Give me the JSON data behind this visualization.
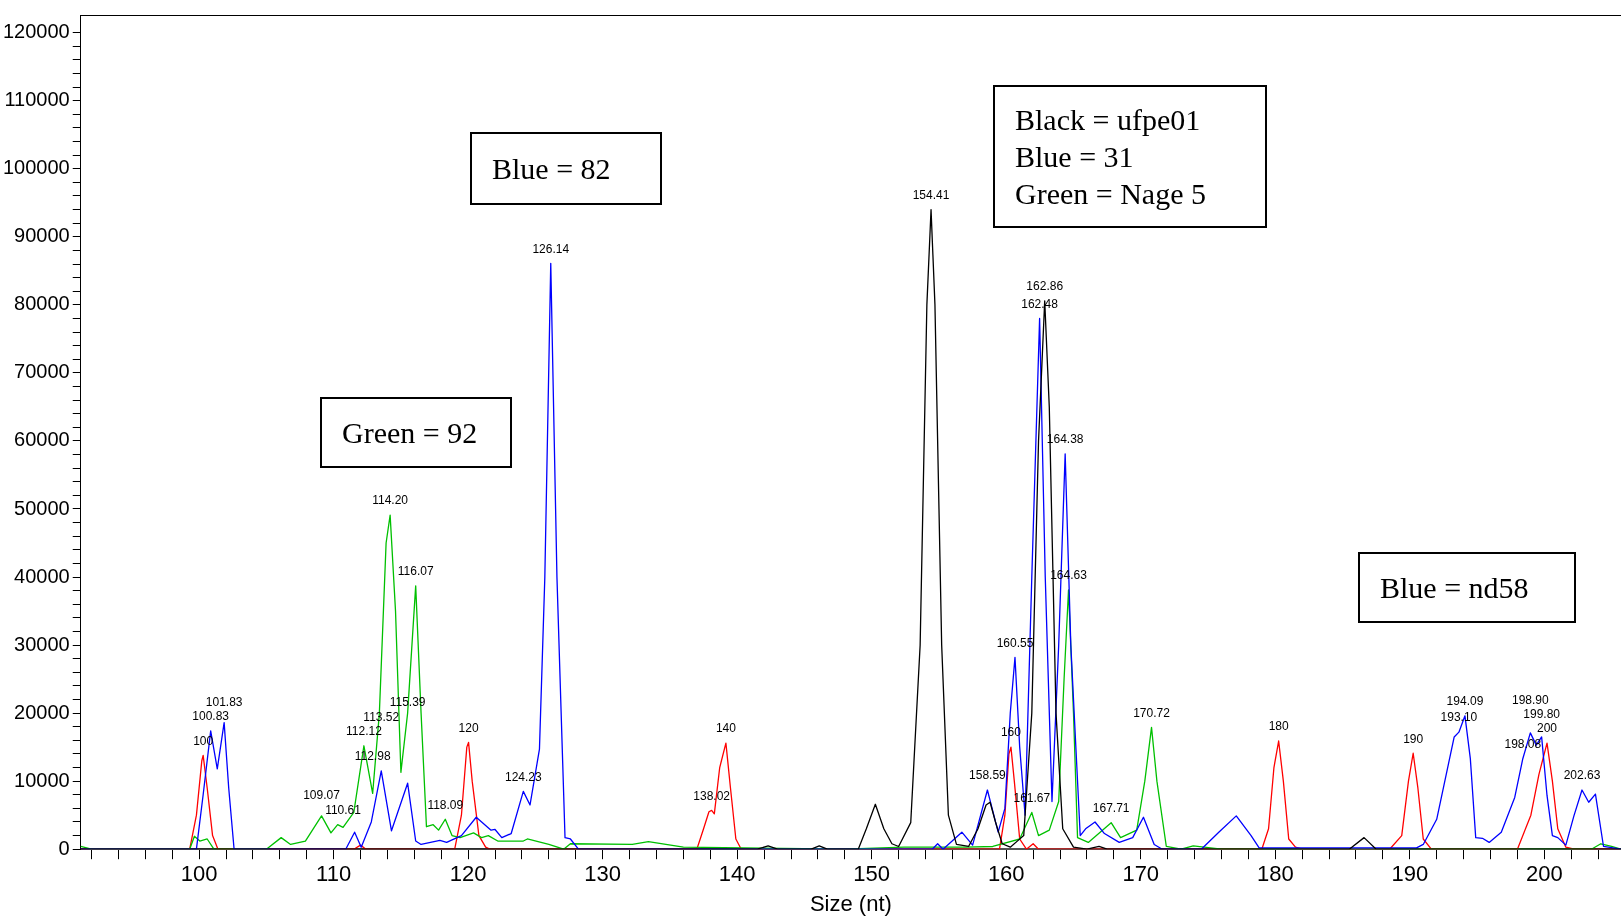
{
  "chart_data": {
    "type": "line",
    "xlabel": "Size (nt)",
    "xlim": [
      91.2,
      205.7
    ],
    "ylim": [
      0,
      122600
    ],
    "legend": false,
    "grid": false,
    "marker": "none",
    "line_style": "solid",
    "xticks": [
      {
        "value": 92,
        "label": null
      },
      {
        "value": 94,
        "label": null
      },
      {
        "value": 96,
        "label": null
      },
      {
        "value": 98,
        "label": null
      },
      100,
      {
        "value": 102,
        "label": null
      },
      {
        "value": 104,
        "label": null
      },
      {
        "value": 106,
        "label": null
      },
      {
        "value": 108,
        "label": null
      },
      110,
      {
        "value": 112,
        "label": null
      },
      {
        "value": 114,
        "label": null
      },
      {
        "value": 116,
        "label": null
      },
      {
        "value": 118,
        "label": null
      },
      120,
      {
        "value": 122,
        "label": null
      },
      {
        "value": 124,
        "label": null
      },
      {
        "value": 126,
        "label": null
      },
      {
        "value": 128,
        "label": null
      },
      130,
      {
        "value": 132,
        "label": null
      },
      {
        "value": 134,
        "label": null
      },
      {
        "value": 136,
        "label": null
      },
      {
        "value": 138,
        "label": null
      },
      140,
      {
        "value": 142,
        "label": null
      },
      {
        "value": 144,
        "label": null
      },
      {
        "value": 146,
        "label": null
      },
      {
        "value": 148,
        "label": null
      },
      150,
      {
        "value": 152,
        "label": null
      },
      {
        "value": 154,
        "label": null
      },
      {
        "value": 156,
        "label": null
      },
      {
        "value": 158,
        "label": null
      },
      160,
      {
        "value": 162,
        "label": null
      },
      {
        "value": 164,
        "label": null
      },
      {
        "value": 166,
        "label": null
      },
      {
        "value": 168,
        "label": null
      },
      170,
      {
        "value": 172,
        "label": null
      },
      {
        "value": 174,
        "label": null
      },
      {
        "value": 176,
        "label": null
      },
      {
        "value": 178,
        "label": null
      },
      180,
      {
        "value": 182,
        "label": null
      },
      {
        "value": 184,
        "label": null
      },
      {
        "value": 186,
        "label": null
      },
      {
        "value": 188,
        "label": null
      },
      190,
      {
        "value": 192,
        "label": null
      },
      {
        "value": 194,
        "label": null
      },
      {
        "value": 196,
        "label": null
      },
      {
        "value": 198,
        "label": null
      },
      200,
      {
        "value": 202,
        "label": null
      },
      {
        "value": 204,
        "label": null
      }
    ],
    "yticks": [
      0,
      {
        "value": 2000,
        "label": null
      },
      {
        "value": 4000,
        "label": null
      },
      {
        "value": 6000,
        "label": null
      },
      {
        "value": 8000,
        "label": null
      },
      10000,
      {
        "value": 12000,
        "label": null
      },
      {
        "value": 14000,
        "label": null
      },
      {
        "value": 16000,
        "label": null
      },
      {
        "value": 18000,
        "label": null
      },
      20000,
      {
        "value": 22000,
        "label": null
      },
      {
        "value": 24000,
        "label": null
      },
      {
        "value": 26000,
        "label": null
      },
      {
        "value": 28000,
        "label": null
      },
      30000,
      {
        "value": 32000,
        "label": null
      },
      {
        "value": 34000,
        "label": null
      },
      {
        "value": 36000,
        "label": null
      },
      {
        "value": 38000,
        "label": null
      },
      40000,
      {
        "value": 42000,
        "label": null
      },
      {
        "value": 44000,
        "label": null
      },
      {
        "value": 46000,
        "label": null
      },
      {
        "value": 48000,
        "label": null
      },
      50000,
      {
        "value": 52000,
        "label": null
      },
      {
        "value": 54000,
        "label": null
      },
      {
        "value": 56000,
        "label": null
      },
      {
        "value": 58000,
        "label": null
      },
      60000,
      {
        "value": 62000,
        "label": null
      },
      {
        "value": 64000,
        "label": null
      },
      {
        "value": 66000,
        "label": null
      },
      {
        "value": 68000,
        "label": null
      },
      70000,
      {
        "value": 72000,
        "label": null
      },
      {
        "value": 74000,
        "label": null
      },
      {
        "value": 76000,
        "label": null
      },
      {
        "value": 78000,
        "label": null
      },
      80000,
      {
        "value": 82000,
        "label": null
      },
      {
        "value": 84000,
        "label": null
      },
      {
        "value": 86000,
        "label": null
      },
      {
        "value": 88000,
        "label": null
      },
      90000,
      {
        "value": 92000,
        "label": null
      },
      {
        "value": 94000,
        "label": null
      },
      {
        "value": 96000,
        "label": null
      },
      {
        "value": 98000,
        "label": null
      },
      100000,
      {
        "value": 102000,
        "label": null
      },
      {
        "value": 104000,
        "label": null
      },
      {
        "value": 106000,
        "label": null
      },
      {
        "value": 108000,
        "label": null
      },
      110000,
      {
        "value": 112000,
        "label": null
      },
      {
        "value": 114000,
        "label": null
      },
      {
        "value": 116000,
        "label": null
      },
      {
        "value": 118000,
        "label": null
      },
      120000
    ],
    "series": [
      {
        "color": "#000000",
        "x": [
          91.2,
          141.5,
          142.3,
          143,
          145.5,
          146.1,
          146.7,
          149,
          149.6,
          150.27,
          150.9,
          151.5,
          152,
          152.9,
          153.6,
          154.1,
          154.41,
          154.7,
          155.2,
          155.7,
          156.3,
          157.2,
          157.9,
          158.5,
          158.8,
          159.2,
          159.7,
          160.3,
          161.3,
          161.9,
          162.4,
          162.86,
          163.2,
          163.7,
          164.2,
          165,
          166,
          166.9,
          167.5,
          185.5,
          186.6,
          187.5,
          205.7
        ],
        "values": [
          0,
          0,
          500,
          0,
          0,
          500,
          0,
          0,
          3000,
          6600,
          3000,
          800,
          400,
          3900,
          30000,
          80000,
          94000,
          80000,
          30000,
          5000,
          700,
          400,
          3000,
          6500,
          6900,
          4000,
          800,
          300,
          2000,
          20000,
          60000,
          80600,
          65000,
          20000,
          3000,
          300,
          0,
          400,
          0,
          0,
          1700,
          0,
          0
        ]
      },
      {
        "color": "#0000ff",
        "x": [
          91.2,
          99.8,
          100.3,
          100.86,
          101.35,
          101.86,
          102.2,
          102.6,
          110.9,
          111.56,
          112.05,
          112.8,
          113.54,
          114.3,
          115.5,
          116.1,
          116.5,
          117.9,
          118.4,
          119.5,
          120.6,
          121.7,
          122,
          122.5,
          123.2,
          124.1,
          124.6,
          125.3,
          125.7,
          126.14,
          126.6,
          127.2,
          127.6,
          128.2,
          154.5,
          154.9,
          155.3,
          156.7,
          157.5,
          158.6,
          159.4,
          159.9,
          160.3,
          160.65,
          161,
          161.4,
          161.9,
          162.48,
          162.9,
          163.4,
          163.9,
          164.38,
          164.8,
          165.5,
          165.9,
          166.6,
          167.3,
          168.4,
          169.4,
          170.2,
          171,
          171.6,
          174.5,
          175.8,
          177.1,
          178.2,
          178.8,
          190.5,
          191,
          192,
          193.3,
          193.65,
          194.1,
          194.5,
          194.9,
          195.4,
          195.9,
          196.8,
          197.8,
          198.4,
          198.96,
          199.4,
          199.8,
          200.2,
          200.6,
          201,
          201.6,
          202.2,
          202.8,
          203.3,
          203.8,
          204.4,
          205.7
        ],
        "values": [
          0,
          0,
          8000,
          17400,
          11800,
          18600,
          9000,
          0,
          0,
          2500,
          300,
          4000,
          11500,
          2700,
          9700,
          1200,
          700,
          1300,
          1000,
          2000,
          4700,
          2800,
          2900,
          1700,
          2300,
          8500,
          6500,
          14700,
          40000,
          86100,
          40000,
          1700,
          1500,
          0,
          0,
          800,
          0,
          2500,
          600,
          8700,
          2500,
          6000,
          20000,
          28200,
          15000,
          5000,
          40000,
          78000,
          40000,
          7000,
          30000,
          58100,
          30000,
          2000,
          3000,
          4000,
          2300,
          1000,
          1700,
          4700,
          700,
          0,
          0,
          2500,
          4900,
          2000,
          200,
          200,
          700,
          4400,
          16500,
          17200,
          19600,
          13300,
          1700,
          1600,
          1000,
          2500,
          7600,
          13300,
          17100,
          15300,
          16500,
          7900,
          2000,
          1700,
          600,
          4900,
          8700,
          6900,
          8100,
          400,
          0
        ]
      },
      {
        "color": "#00c000",
        "x": [
          91.2,
          92,
          99.3,
          99.65,
          100.05,
          100.6,
          101.1,
          105,
          106.1,
          106.8,
          107.9,
          109.1,
          109.8,
          110.3,
          110.7,
          111.5,
          112.25,
          112.9,
          113.4,
          113.9,
          114.2,
          114.6,
          115,
          115.5,
          116.1,
          116.5,
          116.9,
          117.4,
          117.8,
          118.3,
          118.8,
          119.4,
          120.4,
          121,
          121.5,
          122.2,
          124.1,
          124.4,
          126,
          127.1,
          127.6,
          132.2,
          133.4,
          136,
          148,
          152.4,
          157,
          159,
          161,
          161.9,
          162.4,
          163.2,
          163.9,
          164.3,
          164.63,
          165,
          165.3,
          166.1,
          167.8,
          168.5,
          169.7,
          170.3,
          170.8,
          171.2,
          171.9,
          173,
          173.9,
          176,
          203.5,
          204.2,
          205,
          205.7
        ],
        "values": [
          400,
          0,
          0,
          1900,
          1200,
          1500,
          0,
          0,
          1700,
          700,
          1200,
          4900,
          2400,
          3600,
          3200,
          5400,
          15200,
          8200,
          20000,
          45000,
          49100,
          35000,
          11300,
          20000,
          38700,
          20000,
          3300,
          3600,
          2800,
          4400,
          2000,
          1700,
          2400,
          1700,
          2000,
          1200,
          1200,
          1500,
          700,
          0,
          800,
          700,
          1100,
          300,
          0,
          300,
          300,
          400,
          1500,
          5400,
          2000,
          2800,
          7000,
          25000,
          38100,
          20000,
          1700,
          1000,
          3900,
          1700,
          2800,
          10000,
          17900,
          10000,
          400,
          0,
          500,
          0,
          0,
          800,
          400,
          0
        ]
      },
      {
        "color": "#ff0000",
        "x": [
          91.2,
          99.3,
          99.8,
          100.2,
          100.3,
          100.6,
          101,
          101.4,
          111.5,
          112,
          112.4,
          119,
          119.5,
          119.9,
          120.03,
          120.3,
          120.8,
          121.3,
          121.6,
          137,
          137.5,
          137.9,
          138.1,
          138.3,
          138.7,
          139.16,
          139.5,
          139.9,
          140.3,
          159.5,
          159.9,
          160.2,
          160.35,
          160.6,
          161,
          161.5,
          162,
          162.4,
          179,
          179.5,
          179.9,
          180.25,
          180.6,
          181,
          181.5,
          182,
          188.5,
          189.4,
          189.9,
          190.25,
          190.6,
          191,
          191.6,
          198,
          199,
          199.6,
          200.2,
          200.6,
          201,
          201.6,
          202.2,
          205.7
        ],
        "values": [
          0,
          0,
          5000,
          13000,
          13800,
          9000,
          2000,
          0,
          0,
          600,
          0,
          0,
          5000,
          15000,
          15700,
          10000,
          2000,
          300,
          0,
          0,
          3000,
          5500,
          5700,
          5200,
          12000,
          15600,
          9000,
          1500,
          0,
          0,
          5000,
          14000,
          15000,
          10000,
          1500,
          0,
          800,
          0,
          0,
          3000,
          12000,
          15900,
          10000,
          1500,
          300,
          0,
          0,
          2000,
          10000,
          14100,
          9000,
          1500,
          0,
          0,
          5000,
          11000,
          15600,
          10000,
          3000,
          300,
          0,
          0
        ]
      }
    ],
    "annotations": [
      "Blue = 82",
      "Green = 92",
      "Black = ufpe01\nBlue = 31\nGreen = Nage 5",
      "Blue = nd58",
      {
        "text": "100",
        "x": 100.3,
        "y": 13800
      },
      {
        "text": "100.83",
        "x": 100.86,
        "y": 17400
      },
      {
        "text": "101.83",
        "x": 101.86,
        "y": 18600
      },
      {
        "text": "109.07",
        "x": 109.1,
        "y": 4900
      },
      {
        "text": "110.61",
        "x": 110.7,
        "y": 3600
      },
      {
        "text": "112.98",
        "x": 112.9,
        "y": 11500
      },
      {
        "text": "112.12",
        "x": 112.25,
        "y": 15200
      },
      {
        "text": "113.52",
        "x": 113.54,
        "y": 15200
      },
      {
        "text": "115.39",
        "x": 115.5,
        "y": 18000
      },
      {
        "text": "114.20",
        "x": 114.2,
        "y": 49100
      },
      {
        "text": "116.07",
        "x": 116.1,
        "y": 38700
      },
      {
        "text": "118.09",
        "x": 118.3,
        "y": 4400
      },
      {
        "text": "120",
        "x": 120.03,
        "y": 15700
      },
      {
        "text": "124.23",
        "x": 124.1,
        "y": 8500
      },
      {
        "text": "126.14",
        "x": 126.14,
        "y": 86100
      },
      {
        "text": "138.02",
        "x": 138.1,
        "y": 5700
      },
      {
        "text": "140",
        "x": 139.16,
        "y": 15600
      },
      {
        "text": "154.41",
        "x": 154.41,
        "y": 94000
      },
      {
        "text": "158.59",
        "x": 158.6,
        "y": 8700
      },
      {
        "text": "161.67",
        "x": 161.9,
        "y": 5400
      },
      {
        "text": "160",
        "x": 160.35,
        "y": 15000
      },
      {
        "text": "160.55",
        "x": 160.65,
        "y": 28200
      },
      {
        "text": "162.48",
        "x": 162.48,
        "y": 78000
      },
      {
        "text": "162.86",
        "x": 162.86,
        "y": 80600
      },
      {
        "text": "164.63",
        "x": 164.63,
        "y": 38100
      },
      {
        "text": "164.38",
        "x": 164.38,
        "y": 58100
      },
      {
        "text": "167.71",
        "x": 167.8,
        "y": 3900
      },
      {
        "text": "170.72",
        "x": 170.8,
        "y": 17900
      },
      {
        "text": "180",
        "x": 180.25,
        "y": 15900
      },
      {
        "text": "190",
        "x": 190.25,
        "y": 14100
      },
      {
        "text": "198.08",
        "x": 198.4,
        "y": 13300
      },
      {
        "text": "193.10",
        "x": 193.65,
        "y": 17200
      },
      {
        "text": "194.09",
        "x": 194.1,
        "y": 19600
      },
      {
        "text": "198.90",
        "x": 198.96,
        "y": 17100
      },
      {
        "text": "199.80",
        "x": 199.8,
        "y": 16500
      },
      {
        "text": "200",
        "x": 200.2,
        "y": 15600
      },
      {
        "text": "202.63",
        "x": 202.8,
        "y": 8700
      }
    ]
  }
}
